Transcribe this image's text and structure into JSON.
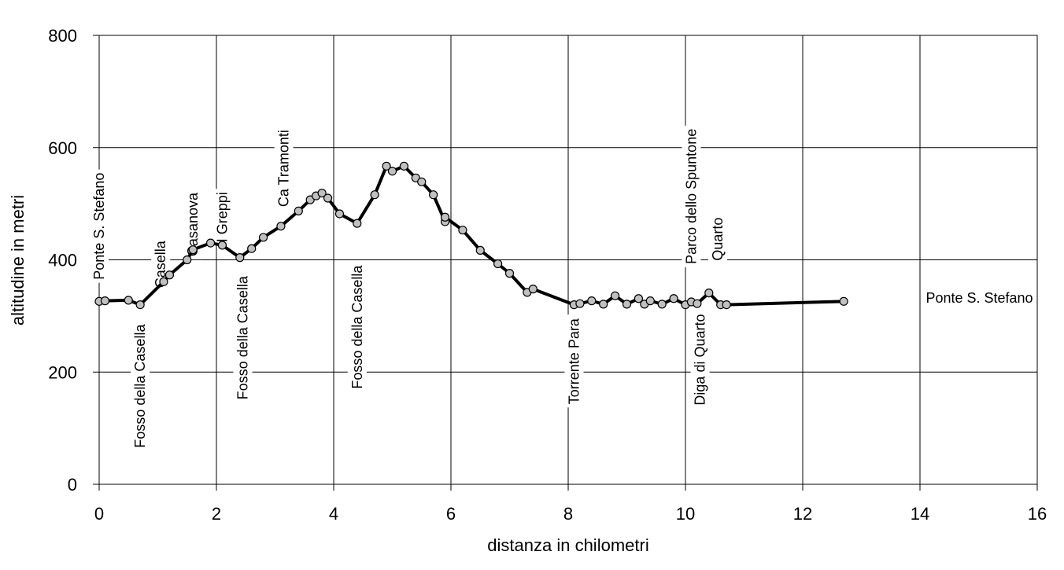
{
  "chart_data": {
    "type": "line",
    "xlabel": "distanza in chilometri",
    "ylabel": "altitudine  in metri",
    "xlim": [
      0,
      16
    ],
    "ylim": [
      0,
      800
    ],
    "x_ticks": [
      0,
      2,
      4,
      6,
      8,
      10,
      12,
      14,
      16
    ],
    "y_ticks": [
      0,
      200,
      400,
      600,
      800
    ],
    "grid": true,
    "series": [
      {
        "points": [
          [
            0.0,
            326
          ],
          [
            0.1,
            327
          ],
          [
            0.5,
            328
          ],
          [
            0.7,
            320
          ],
          [
            1.1,
            361
          ],
          [
            1.2,
            373
          ],
          [
            1.5,
            400
          ],
          [
            1.6,
            418
          ],
          [
            1.9,
            430
          ],
          [
            2.1,
            426
          ],
          [
            2.4,
            404
          ],
          [
            2.6,
            420
          ],
          [
            2.8,
            440
          ],
          [
            3.1,
            460
          ],
          [
            3.4,
            487
          ],
          [
            3.6,
            507
          ],
          [
            3.7,
            514
          ],
          [
            3.8,
            519
          ],
          [
            3.9,
            510
          ],
          [
            4.1,
            482
          ],
          [
            4.4,
            465
          ],
          [
            4.7,
            516
          ],
          [
            4.9,
            567
          ],
          [
            5.0,
            558
          ],
          [
            5.2,
            567
          ],
          [
            5.4,
            546
          ],
          [
            5.5,
            539
          ],
          [
            5.7,
            516
          ],
          [
            5.9,
            468
          ],
          [
            5.9,
            476
          ],
          [
            6.2,
            453
          ],
          [
            6.5,
            417
          ],
          [
            6.8,
            393
          ],
          [
            7.0,
            376
          ],
          [
            7.3,
            342
          ],
          [
            7.4,
            348
          ],
          [
            8.1,
            320
          ],
          [
            8.2,
            322
          ],
          [
            8.4,
            327
          ],
          [
            8.6,
            321
          ],
          [
            8.8,
            336
          ],
          [
            9.0,
            321
          ],
          [
            9.2,
            331
          ],
          [
            9.3,
            321
          ],
          [
            9.4,
            327
          ],
          [
            9.6,
            321
          ],
          [
            9.8,
            331
          ],
          [
            10.0,
            320
          ],
          [
            10.1,
            325
          ],
          [
            10.2,
            322
          ],
          [
            10.4,
            341
          ],
          [
            10.6,
            320
          ],
          [
            10.7,
            320
          ],
          [
            12.7,
            326
          ]
        ]
      }
    ],
    "annotations": [
      {
        "text": "Ponte S. Stefano",
        "x": 0.0,
        "y": 460,
        "rotated": true
      },
      {
        "text": "Fosso della Casella",
        "x": 0.7,
        "y": 175,
        "rotated": true
      },
      {
        "text": "Casella",
        "x": 1.05,
        "y": 392,
        "rotated": true
      },
      {
        "text": "Casanova",
        "x": 1.6,
        "y": 463,
        "rotated": true
      },
      {
        "text": "I Greppi",
        "x": 2.1,
        "y": 476,
        "rotated": true
      },
      {
        "text": "Fosso della Casella",
        "x": 2.45,
        "y": 261,
        "rotated": true
      },
      {
        "text": "Ca Tramonti",
        "x": 3.15,
        "y": 563,
        "rotated": true
      },
      {
        "text": "Fosso della Casella",
        "x": 4.4,
        "y": 280,
        "rotated": true
      },
      {
        "text": "Torrente Para",
        "x": 8.1,
        "y": 219,
        "rotated": true
      },
      {
        "text": "Parco dello Spuntone",
        "x": 10.1,
        "y": 513,
        "rotated": true
      },
      {
        "text": "Diga di Quarto",
        "x": 10.25,
        "y": 222,
        "rotated": true
      },
      {
        "text": "Quarto",
        "x": 10.55,
        "y": 437,
        "rotated": true
      },
      {
        "text": "Ponte S. Stefano",
        "x": 14.1,
        "y": 332,
        "rotated": false
      }
    ]
  }
}
